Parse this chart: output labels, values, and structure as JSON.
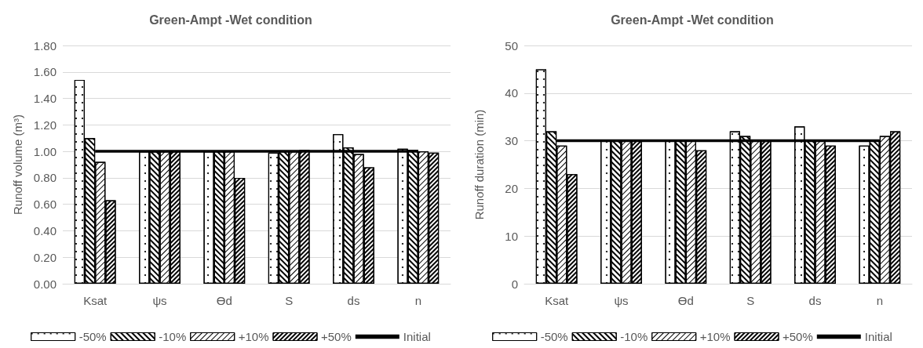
{
  "chart_data": [
    {
      "type": "bar",
      "title": "Green-Ampt -Wet condition",
      "ylabel": "Runoff volume (m³)",
      "categories": [
        "Ksat",
        "ψs",
        "Ɵd",
        "S",
        "ds",
        "n"
      ],
      "ylim": [
        0,
        1.8
      ],
      "yticks": [
        {
          "value": 0,
          "label": "0.00"
        },
        {
          "value": 0.2,
          "label": "0.20"
        },
        {
          "value": 0.4,
          "label": "0.40"
        },
        {
          "value": 0.6,
          "label": "0.60"
        },
        {
          "value": 0.8,
          "label": "0.80"
        },
        {
          "value": 1,
          "label": "1.00"
        },
        {
          "value": 1.2,
          "label": "1.20"
        },
        {
          "value": 1.4,
          "label": "1.40"
        },
        {
          "value": 1.6,
          "label": "1.60"
        },
        {
          "value": 1.8,
          "label": "1.80"
        }
      ],
      "grid": "y",
      "legend": "bottom",
      "series": [
        {
          "name": "-50%",
          "color": "#ffffff",
          "values": [
            1.54,
            1.0,
            1.0,
            0.99,
            1.13,
            1.02
          ]
        },
        {
          "name": "-10%",
          "color": "#ffffff",
          "values": [
            1.1,
            1.0,
            1.0,
            1.0,
            1.03,
            1.01
          ]
        },
        {
          "name": "+10%",
          "color": "#ffffff",
          "values": [
            0.92,
            1.0,
            1.0,
            1.0,
            0.98,
            1.0
          ]
        },
        {
          "name": "+50%",
          "color": "#ffffff",
          "values": [
            0.63,
            1.0,
            0.8,
            1.01,
            0.88,
            0.99
          ]
        },
        {
          "name": "Initial",
          "type": "line",
          "color": "#000000",
          "marker": "none",
          "values": [
            1.0,
            1.0,
            1.0,
            1.0,
            1.0,
            1.0
          ]
        }
      ]
    },
    {
      "type": "bar",
      "title": "Green-Ampt -Wet condition",
      "ylabel": "Runoff duration (min)",
      "categories": [
        "Ksat",
        "ψs",
        "Ɵd",
        "S",
        "ds",
        "n"
      ],
      "ylim": [
        0,
        50
      ],
      "yticks": [
        0,
        10,
        20,
        30,
        40,
        50
      ],
      "grid": "y",
      "legend": "bottom",
      "series": [
        {
          "name": "-50%",
          "color": "#ffffff",
          "values": [
            45,
            30,
            30,
            32,
            33,
            29
          ]
        },
        {
          "name": "-10%",
          "color": "#ffffff",
          "values": [
            32,
            30,
            30,
            31,
            30,
            30
          ]
        },
        {
          "name": "+10%",
          "color": "#ffffff",
          "values": [
            29,
            30,
            30,
            30,
            30,
            31
          ]
        },
        {
          "name": "+50%",
          "color": "#ffffff",
          "values": [
            23,
            30,
            28,
            30,
            29,
            32
          ]
        },
        {
          "name": "Initial",
          "type": "line",
          "color": "#000000",
          "marker": "none",
          "values": [
            30,
            30,
            30,
            30,
            30,
            30
          ]
        }
      ]
    }
  ]
}
